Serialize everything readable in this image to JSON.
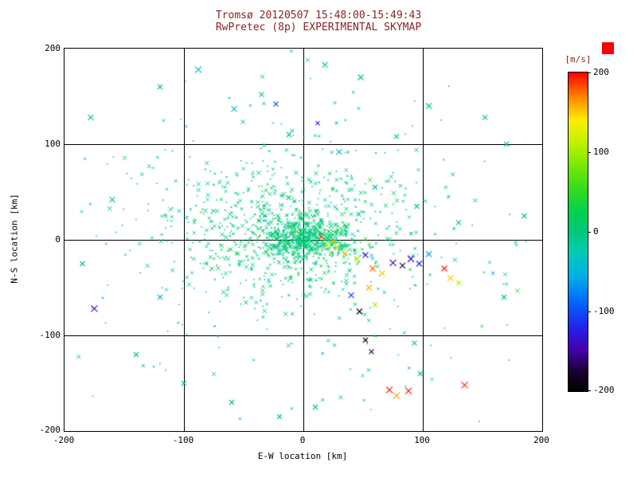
{
  "title": {
    "line1": "Tromsø 20120507 15:48:00-15:49:43",
    "line2": "RwPretec (8p) EXPERIMENTAL SKYMAP"
  },
  "colors": {
    "title_text": "#8b2323",
    "axis_text": "#000000",
    "frame": "#000000",
    "background": "#ffffff",
    "main_marker": "#00c878"
  },
  "legend_marker": {
    "color": "#ff0000",
    "shape": "filled-square"
  },
  "axes": {
    "x": {
      "label": "E-W location [km]",
      "min": -200,
      "max": 200,
      "ticks": [
        -200,
        -100,
        0,
        100,
        200
      ],
      "gridlines": [
        -100,
        0,
        100
      ]
    },
    "y": {
      "label": "N-S location [km]",
      "min": -200,
      "max": 200,
      "ticks": [
        -200,
        -100,
        0,
        100,
        200
      ],
      "gridlines": [
        -100,
        0,
        100
      ]
    }
  },
  "colorbar": {
    "label": "[m/s]",
    "ticks": [
      200,
      100,
      0,
      -100,
      -200
    ]
  },
  "chart_data": {
    "type": "scatter",
    "marker": "x",
    "title": "Tromsø 20120507 15:48:00-15:49:43 / RwPretec (8p) EXPERIMENTAL SKYMAP",
    "xlabel": "E-W location [km]",
    "ylabel": "N-S location [km]",
    "xlim": [
      -200,
      200
    ],
    "ylim": [
      -200,
      200
    ],
    "grid": true,
    "seed": 42,
    "dot_fraction": 0.38,
    "colormap": {
      "unit": "m/s",
      "min": -200,
      "max": 200,
      "stops": [
        {
          "t": 0.0,
          "c": "#000000"
        },
        {
          "t": 0.06,
          "c": "#1a0030"
        },
        {
          "t": 0.13,
          "c": "#4400aa"
        },
        {
          "t": 0.2,
          "c": "#2222ee"
        },
        {
          "t": 0.28,
          "c": "#0066ff"
        },
        {
          "t": 0.36,
          "c": "#00b0e8"
        },
        {
          "t": 0.44,
          "c": "#00ccb0"
        },
        {
          "t": 0.5,
          "c": "#00c878"
        },
        {
          "t": 0.56,
          "c": "#00d050"
        },
        {
          "t": 0.63,
          "c": "#30dc20"
        },
        {
          "t": 0.7,
          "c": "#70e800"
        },
        {
          "t": 0.78,
          "c": "#c0f000"
        },
        {
          "t": 0.85,
          "c": "#ffee00"
        },
        {
          "t": 0.92,
          "c": "#ff8800"
        },
        {
          "t": 1.0,
          "c": "#ff0000"
        }
      ]
    },
    "clusters": [
      {
        "count": 450,
        "cx": -3,
        "cy": 2,
        "sx": 16,
        "sy": 12,
        "v_mean": 2,
        "v_sd": 14
      },
      {
        "count": 650,
        "cx": -18,
        "cy": 8,
        "sx": 52,
        "sy": 42,
        "v_mean": -4,
        "v_sd": 18
      },
      {
        "count": 120,
        "cx": 22,
        "cy": -2,
        "sx": 14,
        "sy": 9,
        "v_mean": 5,
        "v_sd": 16
      },
      {
        "count": 230,
        "cx": -5,
        "cy": 0,
        "sx": 105,
        "sy": 88,
        "v_mean": 0,
        "v_sd": 22
      }
    ],
    "outliers_format": "[x_km, y_km, velocity_mps, marker_size_px]",
    "outliers": [
      [
        -175,
        -72,
        -130,
        6
      ],
      [
        -185,
        -25,
        8,
        4
      ],
      [
        -160,
        42,
        -5,
        5
      ],
      [
        -178,
        128,
        6,
        5
      ],
      [
        -120,
        160,
        4,
        4
      ],
      [
        -88,
        178,
        -45,
        6
      ],
      [
        -35,
        152,
        5,
        4
      ],
      [
        18,
        183,
        8,
        5
      ],
      [
        48,
        170,
        4,
        5
      ],
      [
        -58,
        137,
        -45,
        5
      ],
      [
        -23,
        142,
        -105,
        4
      ],
      [
        12,
        122,
        -120,
        3
      ],
      [
        -12,
        110,
        6,
        4
      ],
      [
        105,
        140,
        7,
        5
      ],
      [
        152,
        128,
        5,
        4
      ],
      [
        170,
        100,
        6,
        4
      ],
      [
        78,
        108,
        -4,
        4
      ],
      [
        30,
        92,
        -50,
        5
      ],
      [
        60,
        55,
        -8,
        4
      ],
      [
        95,
        35,
        6,
        4
      ],
      [
        130,
        18,
        -3,
        4
      ],
      [
        15,
        3,
        190,
        4
      ],
      [
        20,
        -6,
        115,
        5
      ],
      [
        25,
        -2,
        150,
        4
      ],
      [
        28,
        -8,
        120,
        5
      ],
      [
        35,
        -14,
        150,
        5
      ],
      [
        45,
        -20,
        105,
        5
      ],
      [
        52,
        -16,
        -140,
        5
      ],
      [
        58,
        -30,
        175,
        5
      ],
      [
        66,
        -35,
        150,
        5
      ],
      [
        75,
        -24,
        -150,
        6
      ],
      [
        83,
        -27,
        -175,
        5
      ],
      [
        90,
        -20,
        -130,
        6
      ],
      [
        97,
        -25,
        -120,
        5
      ],
      [
        105,
        -15,
        -60,
        5
      ],
      [
        118,
        -30,
        195,
        5
      ],
      [
        123,
        -40,
        150,
        5
      ],
      [
        130,
        -45,
        110,
        4
      ],
      [
        40,
        -58,
        -110,
        5
      ],
      [
        55,
        -50,
        155,
        5
      ],
      [
        60,
        -68,
        105,
        4
      ],
      [
        47,
        -75,
        -190,
        5
      ],
      [
        52,
        -105,
        -185,
        4
      ],
      [
        57,
        -117,
        -165,
        4
      ],
      [
        93,
        -108,
        -10,
        4
      ],
      [
        -120,
        -60,
        -40,
        4
      ],
      [
        -140,
        -120,
        5,
        4
      ],
      [
        -100,
        -150,
        -5,
        4
      ],
      [
        -60,
        -170,
        4,
        4
      ],
      [
        -20,
        -185,
        -4,
        4
      ],
      [
        10,
        -175,
        6,
        4
      ],
      [
        72,
        -157,
        195,
        6
      ],
      [
        78,
        -163,
        160,
        6
      ],
      [
        88,
        -158,
        195,
        6
      ],
      [
        135,
        -152,
        190,
        6
      ],
      [
        98,
        -140,
        2,
        4
      ],
      [
        168,
        -60,
        5,
        4
      ],
      [
        185,
        25,
        -5,
        4
      ]
    ]
  }
}
